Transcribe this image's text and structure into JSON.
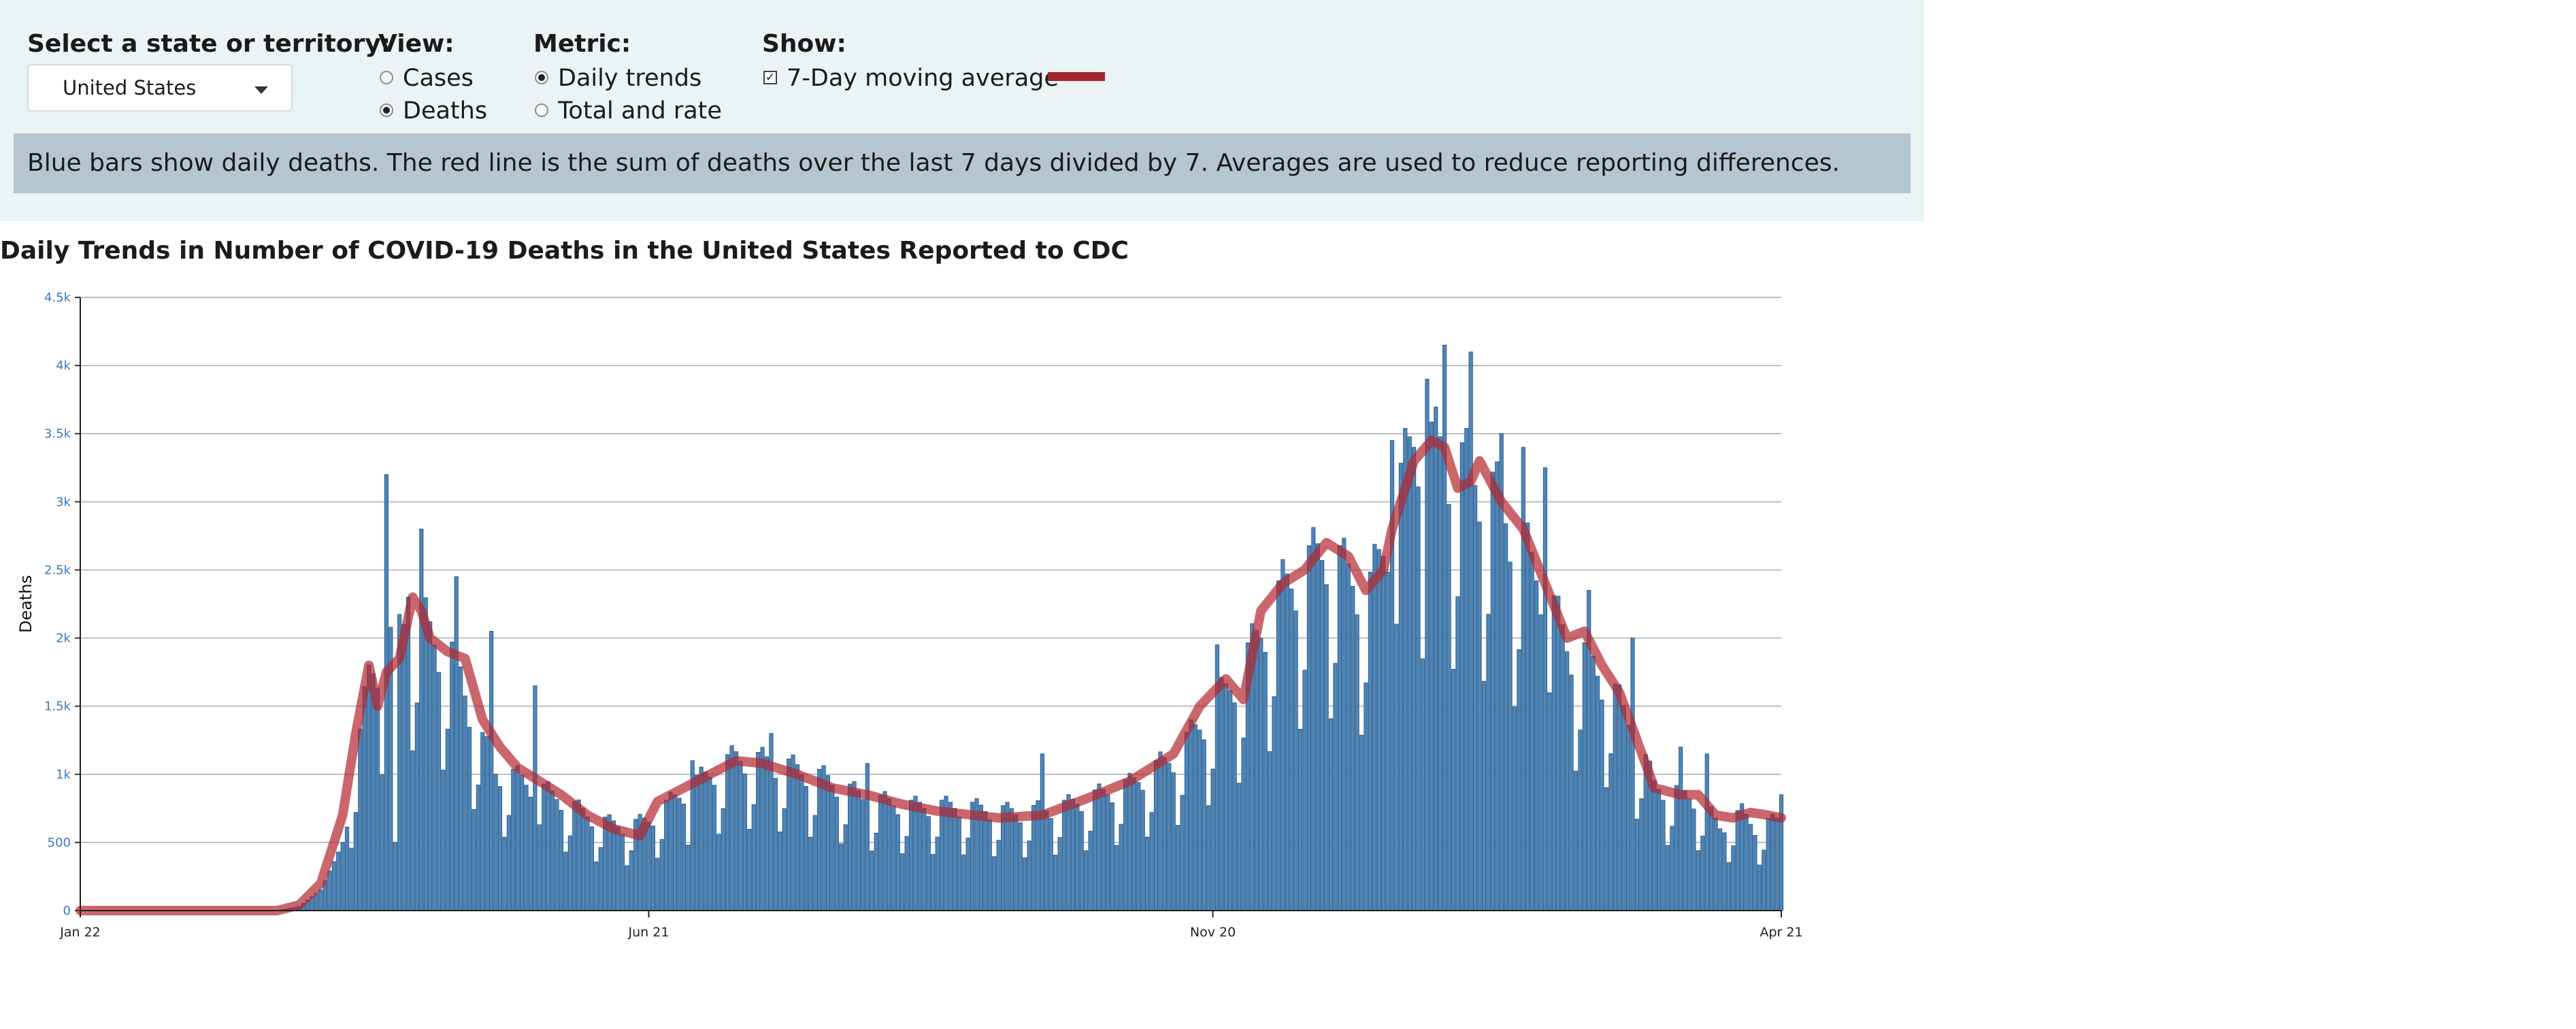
{
  "controls": {
    "state_label": "Select a state or territory:",
    "state_value": "United States",
    "view": {
      "label": "View:",
      "options": [
        "Cases",
        "Deaths"
      ],
      "selected": "Deaths"
    },
    "metric": {
      "label": "Metric:",
      "options": [
        "Daily trends",
        "Total and rate"
      ],
      "selected": "Daily trends"
    },
    "show": {
      "label": "Show:",
      "option": "7-Day moving average",
      "checked": true
    }
  },
  "note": "Blue bars show daily deaths. The red line is the sum of deaths over the last 7 days divided by 7. Averages are used to reduce reporting differences.",
  "colors": {
    "bar": "#4f86b8",
    "bar_stroke": "#2f5f8c",
    "line": "#b3262f",
    "panel": "#eaf4f4",
    "note": "#b6c6d1",
    "axis_text": "#3a7ab8"
  },
  "chart_data": {
    "type": "bar",
    "title": "Daily Trends in Number of COVID-19 Deaths in the United States Reported to CDC",
    "ylabel": "Deaths",
    "xlabel": "",
    "ylim": [
      0,
      4500
    ],
    "yticks": [
      0,
      500,
      1000,
      1500,
      2000,
      2500,
      3000,
      3500,
      4000,
      4500
    ],
    "ytick_labels": [
      "0",
      "500",
      "1k",
      "1.5k",
      "2k",
      "2.5k",
      "3k",
      "3.5k",
      "4k",
      "4.5k"
    ],
    "xtick_labels": [
      "Jan 22",
      "Jun 21",
      "Nov 20",
      "Apr 21"
    ],
    "x_start": "Jan 22",
    "x_end": "Apr 21",
    "grid": true,
    "series": [
      {
        "name": "Daily deaths",
        "kind": "bar",
        "anchors": [
          [
            0,
            0
          ],
          [
            45,
            0
          ],
          [
            50,
            30
          ],
          [
            55,
            150
          ],
          [
            60,
            500
          ],
          [
            63,
            1000
          ],
          [
            66,
            1700
          ],
          [
            70,
            1850
          ],
          [
            72,
            2000
          ],
          [
            75,
            2150
          ],
          [
            78,
            2100
          ],
          [
            82,
            1900
          ],
          [
            86,
            1800
          ],
          [
            90,
            1350
          ],
          [
            95,
            1000
          ],
          [
            100,
            950
          ],
          [
            110,
            800
          ],
          [
            118,
            650
          ],
          [
            125,
            600
          ],
          [
            130,
            650
          ],
          [
            140,
            900
          ],
          [
            150,
            1100
          ],
          [
            160,
            1050
          ],
          [
            170,
            950
          ],
          [
            180,
            800
          ],
          [
            190,
            750
          ],
          [
            200,
            750
          ],
          [
            215,
            700
          ],
          [
            225,
            750
          ],
          [
            240,
            900
          ],
          [
            250,
            1100
          ],
          [
            258,
            1400
          ],
          [
            265,
            1700
          ],
          [
            270,
            2000
          ],
          [
            275,
            2300
          ],
          [
            280,
            2450
          ],
          [
            285,
            2600
          ],
          [
            290,
            2400
          ],
          [
            295,
            2300
          ],
          [
            300,
            2800
          ],
          [
            305,
            3400
          ],
          [
            310,
            3300
          ],
          [
            315,
            3200
          ],
          [
            320,
            3100
          ],
          [
            325,
            2900
          ],
          [
            330,
            2600
          ],
          [
            335,
            2300
          ],
          [
            340,
            1900
          ],
          [
            345,
            1800
          ],
          [
            350,
            1600
          ],
          [
            355,
            1300
          ],
          [
            360,
            900
          ],
          [
            370,
            800
          ],
          [
            375,
            600
          ],
          [
            380,
            700
          ],
          [
            383,
            600
          ],
          [
            389,
            650
          ]
        ],
        "spikes": {
          "70": 3200,
          "72": 500,
          "75": 2300,
          "78": 2800,
          "86": 2450,
          "94": 2050,
          "104": 1650,
          "140": 1100,
          "158": 1300,
          "180": 1080,
          "220": 1150,
          "260": 1950,
          "300": 3450,
          "308": 3900,
          "312": 4150,
          "318": 4100,
          "325": 3500,
          "330": 3400,
          "335": 3250,
          "345": 2350,
          "355": 2000,
          "366": 1200,
          "372": 1150,
          "389": 850
        }
      },
      {
        "name": "7-Day moving average",
        "kind": "line",
        "anchors": [
          [
            0,
            0
          ],
          [
            45,
            0
          ],
          [
            50,
            40
          ],
          [
            55,
            200
          ],
          [
            60,
            700
          ],
          [
            63,
            1300
          ],
          [
            66,
            1800
          ],
          [
            68,
            1500
          ],
          [
            70,
            1750
          ],
          [
            73,
            1850
          ],
          [
            76,
            2300
          ],
          [
            78,
            2200
          ],
          [
            80,
            2000
          ],
          [
            84,
            1900
          ],
          [
            88,
            1850
          ],
          [
            92,
            1400
          ],
          [
            96,
            1200
          ],
          [
            100,
            1050
          ],
          [
            105,
            950
          ],
          [
            110,
            850
          ],
          [
            116,
            700
          ],
          [
            122,
            600
          ],
          [
            128,
            550
          ],
          [
            132,
            800
          ],
          [
            138,
            900
          ],
          [
            144,
            1000
          ],
          [
            150,
            1100
          ],
          [
            156,
            1080
          ],
          [
            164,
            1000
          ],
          [
            172,
            900
          ],
          [
            180,
            850
          ],
          [
            188,
            780
          ],
          [
            196,
            730
          ],
          [
            210,
            680
          ],
          [
            220,
            700
          ],
          [
            230,
            820
          ],
          [
            240,
            950
          ],
          [
            250,
            1150
          ],
          [
            256,
            1500
          ],
          [
            262,
            1700
          ],
          [
            266,
            1550
          ],
          [
            270,
            2200
          ],
          [
            275,
            2400
          ],
          [
            280,
            2500
          ],
          [
            285,
            2700
          ],
          [
            290,
            2600
          ],
          [
            294,
            2350
          ],
          [
            298,
            2500
          ],
          [
            300,
            2800
          ],
          [
            305,
            3300
          ],
          [
            309,
            3450
          ],
          [
            312,
            3400
          ],
          [
            315,
            3100
          ],
          [
            318,
            3150
          ],
          [
            320,
            3300
          ],
          [
            325,
            3000
          ],
          [
            330,
            2800
          ],
          [
            335,
            2400
          ],
          [
            340,
            2000
          ],
          [
            344,
            2050
          ],
          [
            348,
            1800
          ],
          [
            352,
            1600
          ],
          [
            356,
            1250
          ],
          [
            360,
            900
          ],
          [
            366,
            850
          ],
          [
            370,
            850
          ],
          [
            374,
            700
          ],
          [
            378,
            680
          ],
          [
            382,
            720
          ],
          [
            386,
            700
          ],
          [
            389,
            680
          ]
        ]
      }
    ]
  }
}
